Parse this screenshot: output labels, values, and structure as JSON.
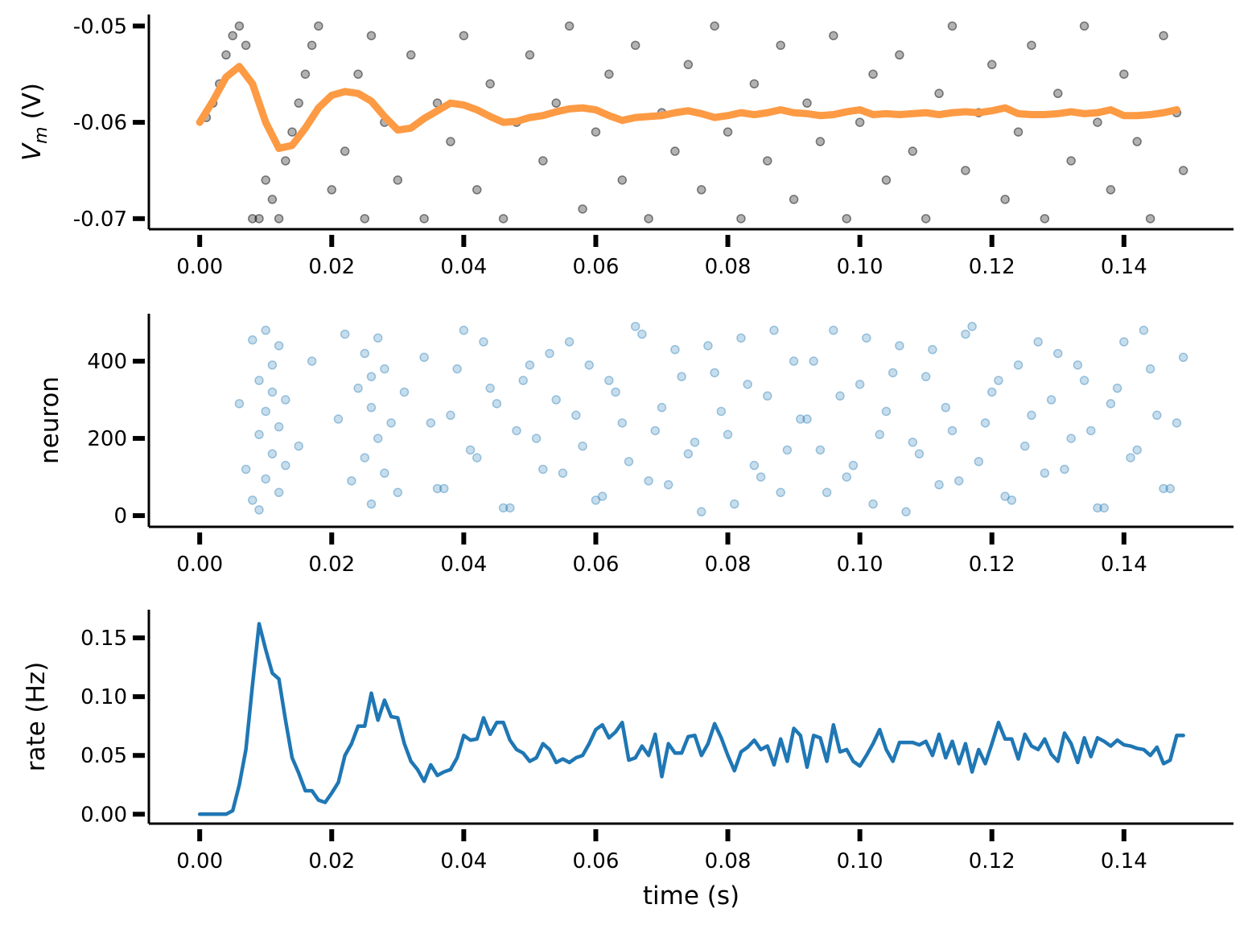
{
  "chart_data": [
    {
      "type": "scatter",
      "ylabel": {
        "symbol": "V",
        "subscript": "m",
        "unit": "(V)"
      },
      "xlim": [
        -0.0077,
        0.1566
      ],
      "ylim": [
        -0.0711,
        -0.0488
      ],
      "xticks": [
        {
          "value": 0,
          "label": "0.00"
        },
        0.02,
        0.04,
        0.06,
        0.08,
        {
          "value": 0.1,
          "label": "0.10"
        },
        0.12,
        0.14
      ],
      "yticks": [
        -0.05,
        -0.06,
        -0.07
      ],
      "series": [
        {
          "type": "scatter",
          "color": "#000000",
          "alpha": 0.3,
          "x": [
            0.001,
            0.002,
            0.003,
            0.004,
            0.005,
            0.006,
            0.007,
            0.008,
            0.009,
            0.01,
            0.011,
            0.012,
            0.013,
            0.014,
            0.015,
            0.016,
            0.017,
            0.018,
            0.02,
            0.022,
            0.024,
            0.025,
            0.026,
            0.028,
            0.03,
            0.032,
            0.034,
            0.036,
            0.038,
            0.04,
            0.042,
            0.044,
            0.046,
            0.048,
            0.05,
            0.052,
            0.054,
            0.056,
            0.058,
            0.06,
            0.062,
            0.064,
            0.066,
            0.068,
            0.07,
            0.072,
            0.074,
            0.076,
            0.078,
            0.08,
            0.082,
            0.084,
            0.086,
            0.088,
            0.09,
            0.092,
            0.094,
            0.096,
            0.098,
            0.1,
            0.102,
            0.104,
            0.106,
            0.108,
            0.11,
            0.112,
            0.114,
            0.116,
            0.118,
            0.12,
            0.122,
            0.124,
            0.126,
            0.128,
            0.13,
            0.132,
            0.134,
            0.136,
            0.138,
            0.14,
            0.142,
            0.144,
            0.146,
            0.148,
            0.149
          ],
          "values": [
            -0.0595,
            -0.058,
            -0.056,
            -0.053,
            -0.051,
            -0.05,
            -0.052,
            -0.07,
            -0.07,
            -0.066,
            -0.068,
            -0.07,
            -0.064,
            -0.061,
            -0.058,
            -0.055,
            -0.052,
            -0.05,
            -0.067,
            -0.063,
            -0.055,
            -0.07,
            -0.051,
            -0.06,
            -0.066,
            -0.053,
            -0.07,
            -0.058,
            -0.062,
            -0.051,
            -0.067,
            -0.056,
            -0.07,
            -0.06,
            -0.053,
            -0.064,
            -0.058,
            -0.05,
            -0.069,
            -0.061,
            -0.055,
            -0.066,
            -0.052,
            -0.07,
            -0.059,
            -0.063,
            -0.054,
            -0.067,
            -0.05,
            -0.061,
            -0.07,
            -0.056,
            -0.064,
            -0.052,
            -0.068,
            -0.058,
            -0.062,
            -0.051,
            -0.07,
            -0.06,
            -0.055,
            -0.066,
            -0.053,
            -0.063,
            -0.07,
            -0.057,
            -0.05,
            -0.065,
            -0.059,
            -0.054,
            -0.068,
            -0.061,
            -0.052,
            -0.07,
            -0.057,
            -0.064,
            -0.05,
            -0.06,
            -0.067,
            -0.055,
            -0.062,
            -0.07,
            -0.051,
            -0.059,
            -0.065
          ]
        },
        {
          "type": "line",
          "color": "#fd9a44",
          "x": [
            0,
            0.002,
            0.004,
            0.006,
            0.008,
            0.01,
            0.012,
            0.014,
            0.016,
            0.018,
            0.02,
            0.022,
            0.024,
            0.026,
            0.028,
            0.03,
            0.032,
            0.034,
            0.036,
            0.038,
            0.04,
            0.042,
            0.044,
            0.046,
            0.048,
            0.05,
            0.052,
            0.054,
            0.056,
            0.058,
            0.06,
            0.062,
            0.064,
            0.066,
            0.068,
            0.07,
            0.072,
            0.074,
            0.076,
            0.078,
            0.08,
            0.082,
            0.084,
            0.086,
            0.088,
            0.09,
            0.092,
            0.094,
            0.096,
            0.098,
            0.1,
            0.102,
            0.104,
            0.106,
            0.108,
            0.11,
            0.112,
            0.114,
            0.116,
            0.118,
            0.12,
            0.122,
            0.124,
            0.126,
            0.128,
            0.13,
            0.132,
            0.134,
            0.136,
            0.138,
            0.14,
            0.142,
            0.144,
            0.146,
            0.148
          ],
          "values": [
            -0.06,
            -0.0578,
            -0.0553,
            -0.0542,
            -0.056,
            -0.06,
            -0.0627,
            -0.0624,
            -0.0606,
            -0.0585,
            -0.0572,
            -0.0568,
            -0.057,
            -0.0578,
            -0.0594,
            -0.0608,
            -0.0606,
            -0.0596,
            -0.0588,
            -0.058,
            -0.0582,
            -0.0587,
            -0.0594,
            -0.06,
            -0.0599,
            -0.0595,
            -0.0593,
            -0.0589,
            -0.0586,
            -0.0585,
            -0.0587,
            -0.0593,
            -0.0598,
            -0.0595,
            -0.0594,
            -0.0593,
            -0.059,
            -0.0588,
            -0.0591,
            -0.0595,
            -0.0593,
            -0.059,
            -0.0592,
            -0.059,
            -0.0587,
            -0.059,
            -0.0591,
            -0.0593,
            -0.0592,
            -0.0589,
            -0.0587,
            -0.0592,
            -0.0591,
            -0.0592,
            -0.0591,
            -0.059,
            -0.0592,
            -0.059,
            -0.0589,
            -0.059,
            -0.0588,
            -0.0585,
            -0.0591,
            -0.0592,
            -0.0592,
            -0.0591,
            -0.0589,
            -0.0591,
            -0.059,
            -0.0587,
            -0.0593,
            -0.0593,
            -0.0592,
            -0.059,
            -0.0587
          ]
        }
      ]
    },
    {
      "type": "scatter",
      "ylabel": "neuron",
      "xlim": [
        -0.0077,
        0.1566
      ],
      "ylim": [
        -29,
        523
      ],
      "xticks": [
        {
          "value": 0,
          "label": "0.00"
        },
        0.02,
        0.04,
        0.06,
        0.08,
        {
          "value": 0.1,
          "label": "0.10"
        },
        0.12,
        0.14
      ],
      "yticks": [
        0,
        200,
        400
      ],
      "series": [
        {
          "type": "scatter",
          "color": "#1f77b4",
          "alpha": 0.25,
          "x": [
            0.006,
            0.007,
            0.008,
            0.008,
            0.009,
            0.009,
            0.009,
            0.01,
            0.01,
            0.01,
            0.011,
            0.011,
            0.011,
            0.012,
            0.012,
            0.012,
            0.013,
            0.013,
            0.015,
            0.017,
            0.021,
            0.022,
            0.023,
            0.024,
            0.025,
            0.025,
            0.026,
            0.026,
            0.026,
            0.027,
            0.027,
            0.028,
            0.028,
            0.029,
            0.03,
            0.031,
            0.034,
            0.036,
            0.038,
            0.04,
            0.042,
            0.044,
            0.046,
            0.048,
            0.05,
            0.052,
            0.054,
            0.056,
            0.058,
            0.06,
            0.062,
            0.064,
            0.066,
            0.068,
            0.07,
            0.072,
            0.074,
            0.076,
            0.078,
            0.08,
            0.082,
            0.084,
            0.086,
            0.088,
            0.09,
            0.092,
            0.094,
            0.096,
            0.098,
            0.1,
            0.102,
            0.104,
            0.106,
            0.108,
            0.11,
            0.112,
            0.114,
            0.116,
            0.118,
            0.12,
            0.122,
            0.124,
            0.126,
            0.128,
            0.13,
            0.132,
            0.134,
            0.136,
            0.138,
            0.14,
            0.142,
            0.144,
            0.146,
            0.148,
            0.035,
            0.037,
            0.039,
            0.041,
            0.043,
            0.045,
            0.047,
            0.049,
            0.051,
            0.053,
            0.055,
            0.057,
            0.059,
            0.061,
            0.063,
            0.065,
            0.067,
            0.069,
            0.071,
            0.073,
            0.075,
            0.077,
            0.079,
            0.081,
            0.083,
            0.085,
            0.087,
            0.089,
            0.091,
            0.093,
            0.095,
            0.097,
            0.099,
            0.101,
            0.103,
            0.105,
            0.107,
            0.109,
            0.111,
            0.113,
            0.115,
            0.117,
            0.119,
            0.121,
            0.123,
            0.125,
            0.127,
            0.129,
            0.131,
            0.133,
            0.135,
            0.137,
            0.139,
            0.141,
            0.143,
            0.145,
            0.147,
            0.149
          ],
          "values": [
            290,
            120,
            455,
            40,
            350,
            210,
            15,
            480,
            270,
            95,
            390,
            160,
            320,
            60,
            440,
            230,
            130,
            300,
            180,
            400,
            250,
            470,
            90,
            330,
            420,
            150,
            30,
            280,
            360,
            200,
            460,
            110,
            380,
            240,
            60,
            320,
            410,
            70,
            260,
            480,
            150,
            330,
            20,
            220,
            390,
            120,
            300,
            450,
            180,
            40,
            350,
            240,
            490,
            90,
            280,
            430,
            160,
            10,
            370,
            210,
            460,
            130,
            310,
            60,
            400,
            250,
            170,
            480,
            100,
            340,
            30,
            270,
            440,
            190,
            360,
            80,
            220,
            470,
            140,
            320,
            50,
            390,
            260,
            110,
            420,
            200,
            350,
            20,
            290,
            450,
            170,
            380,
            70,
            240,
            240,
            70,
            380,
            170,
            450,
            290,
            20,
            350,
            200,
            420,
            110,
            260,
            390,
            50,
            320,
            140,
            470,
            220,
            80,
            360,
            190,
            440,
            270,
            30,
            340,
            100,
            480,
            170,
            250,
            400,
            60,
            310,
            130,
            460,
            210,
            370,
            10,
            160,
            430,
            280,
            90,
            490,
            240,
            350,
            40,
            180,
            450,
            300,
            120,
            390,
            220,
            20,
            330,
            150,
            480,
            260,
            70,
            410
          ]
        }
      ]
    },
    {
      "type": "line",
      "ylabel": "rate (Hz)",
      "xlabel": "time (s)",
      "xlim": [
        -0.0077,
        0.1566
      ],
      "ylim": [
        -0.008,
        0.174
      ],
      "xticks": [
        {
          "value": 0,
          "label": "0.00"
        },
        0.02,
        0.04,
        0.06,
        0.08,
        {
          "value": 0.1,
          "label": "0.10"
        },
        0.12,
        0.14
      ],
      "yticks": [
        {
          "value": 0,
          "label": "0.00"
        },
        0.05,
        {
          "value": 0.1,
          "label": "0.10"
        },
        0.15
      ],
      "series": [
        {
          "type": "line",
          "color": "#1f77b4",
          "x": [
            0,
            0.001,
            0.002,
            0.003,
            0.004,
            0.005,
            0.006,
            0.007,
            0.008,
            0.009,
            0.01,
            0.011,
            0.012,
            0.013,
            0.014,
            0.015,
            0.016,
            0.017,
            0.018,
            0.019,
            0.02,
            0.021,
            0.022,
            0.023,
            0.024,
            0.025,
            0.026,
            0.027,
            0.028,
            0.029,
            0.03,
            0.031,
            0.032,
            0.033,
            0.034,
            0.035,
            0.036,
            0.037,
            0.038,
            0.039,
            0.04,
            0.041,
            0.042,
            0.043,
            0.044,
            0.045,
            0.046,
            0.047,
            0.048,
            0.049,
            0.05,
            0.051,
            0.052,
            0.053,
            0.054,
            0.055,
            0.056,
            0.057,
            0.058,
            0.059,
            0.06,
            0.061,
            0.062,
            0.063,
            0.064,
            0.065,
            0.066,
            0.067,
            0.068,
            0.069,
            0.07,
            0.071,
            0.072,
            0.073,
            0.074,
            0.075,
            0.076,
            0.077,
            0.078,
            0.079,
            0.08,
            0.081,
            0.082,
            0.083,
            0.084,
            0.085,
            0.086,
            0.087,
            0.088,
            0.089,
            0.09,
            0.091,
            0.092,
            0.093,
            0.094,
            0.095,
            0.096,
            0.097,
            0.098,
            0.099,
            0.1,
            0.101,
            0.102,
            0.103,
            0.104,
            0.105,
            0.106,
            0.107,
            0.108,
            0.109,
            0.11,
            0.111,
            0.112,
            0.113,
            0.114,
            0.115,
            0.116,
            0.117,
            0.118,
            0.119,
            0.12,
            0.121,
            0.122,
            0.123,
            0.124,
            0.125,
            0.126,
            0.127,
            0.128,
            0.129,
            0.13,
            0.131,
            0.132,
            0.133,
            0.134,
            0.135,
            0.136,
            0.137,
            0.138,
            0.139,
            0.14,
            0.141,
            0.142,
            0.143,
            0.144,
            0.145,
            0.146,
            0.147,
            0.148,
            0.149
          ],
          "values": [
            0,
            0,
            0,
            0,
            0,
            0.003,
            0.025,
            0.055,
            0.11,
            0.162,
            0.14,
            0.12,
            0.115,
            0.08,
            0.048,
            0.035,
            0.02,
            0.02,
            0.012,
            0.01,
            0.018,
            0.027,
            0.05,
            0.06,
            0.075,
            0.075,
            0.103,
            0.08,
            0.097,
            0.083,
            0.082,
            0.06,
            0.045,
            0.038,
            0.028,
            0.042,
            0.033,
            0.036,
            0.038,
            0.048,
            0.067,
            0.063,
            0.064,
            0.082,
            0.068,
            0.078,
            0.078,
            0.063,
            0.055,
            0.052,
            0.045,
            0.048,
            0.06,
            0.055,
            0.044,
            0.047,
            0.044,
            0.048,
            0.05,
            0.06,
            0.072,
            0.076,
            0.065,
            0.07,
            0.078,
            0.046,
            0.048,
            0.058,
            0.05,
            0.068,
            0.032,
            0.06,
            0.052,
            0.052,
            0.066,
            0.067,
            0.05,
            0.06,
            0.077,
            0.065,
            0.05,
            0.037,
            0.053,
            0.057,
            0.063,
            0.055,
            0.058,
            0.042,
            0.064,
            0.045,
            0.073,
            0.067,
            0.04,
            0.067,
            0.065,
            0.045,
            0.076,
            0.053,
            0.055,
            0.045,
            0.041,
            0.05,
            0.06,
            0.072,
            0.055,
            0.045,
            0.061,
            0.061,
            0.061,
            0.059,
            0.062,
            0.05,
            0.068,
            0.048,
            0.062,
            0.043,
            0.06,
            0.036,
            0.055,
            0.043,
            0.06,
            0.078,
            0.064,
            0.064,
            0.047,
            0.068,
            0.058,
            0.055,
            0.064,
            0.051,
            0.045,
            0.069,
            0.06,
            0.044,
            0.065,
            0.049,
            0.065,
            0.062,
            0.058,
            0.063,
            0.059,
            0.058,
            0.056,
            0.055,
            0.05,
            0.057,
            0.043,
            0.046,
            0.067,
            0.067
          ]
        }
      ]
    }
  ]
}
